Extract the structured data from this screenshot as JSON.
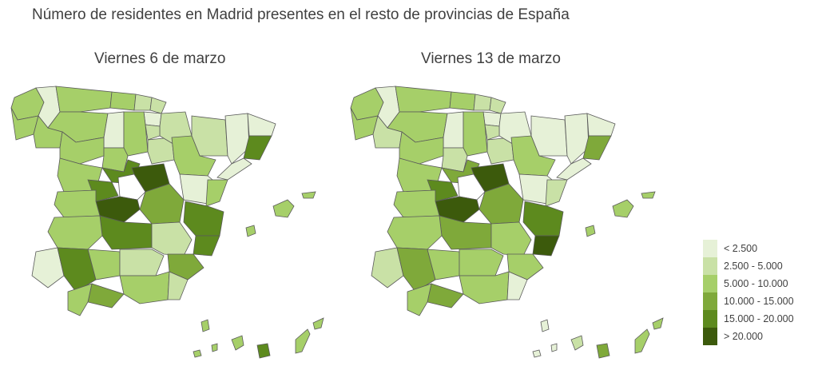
{
  "title": "Número de residentes en Madrid presentes en el resto de provincias de España",
  "maps": [
    {
      "title": "Viernes 6 de marzo"
    },
    {
      "title": "Viernes 13 de marzo"
    }
  ],
  "legend": {
    "classes": [
      {
        "label": "< 2.500",
        "color": "#e6f1d7"
      },
      {
        "label": "2.500 - 5.000",
        "color": "#c9e1a6"
      },
      {
        "label": "5.000 - 10.000",
        "color": "#a6cf69"
      },
      {
        "label": "10.000 - 15.000",
        "color": "#7fa93a"
      },
      {
        "label": "15.000 - 20.000",
        "color": "#5d8a1e"
      },
      {
        "label": "> 20.000",
        "color": "#3c5a0c"
      }
    ]
  },
  "colors": {
    "madrid_blank": "#ffffff",
    "border": "#5a5a5a"
  }
}
